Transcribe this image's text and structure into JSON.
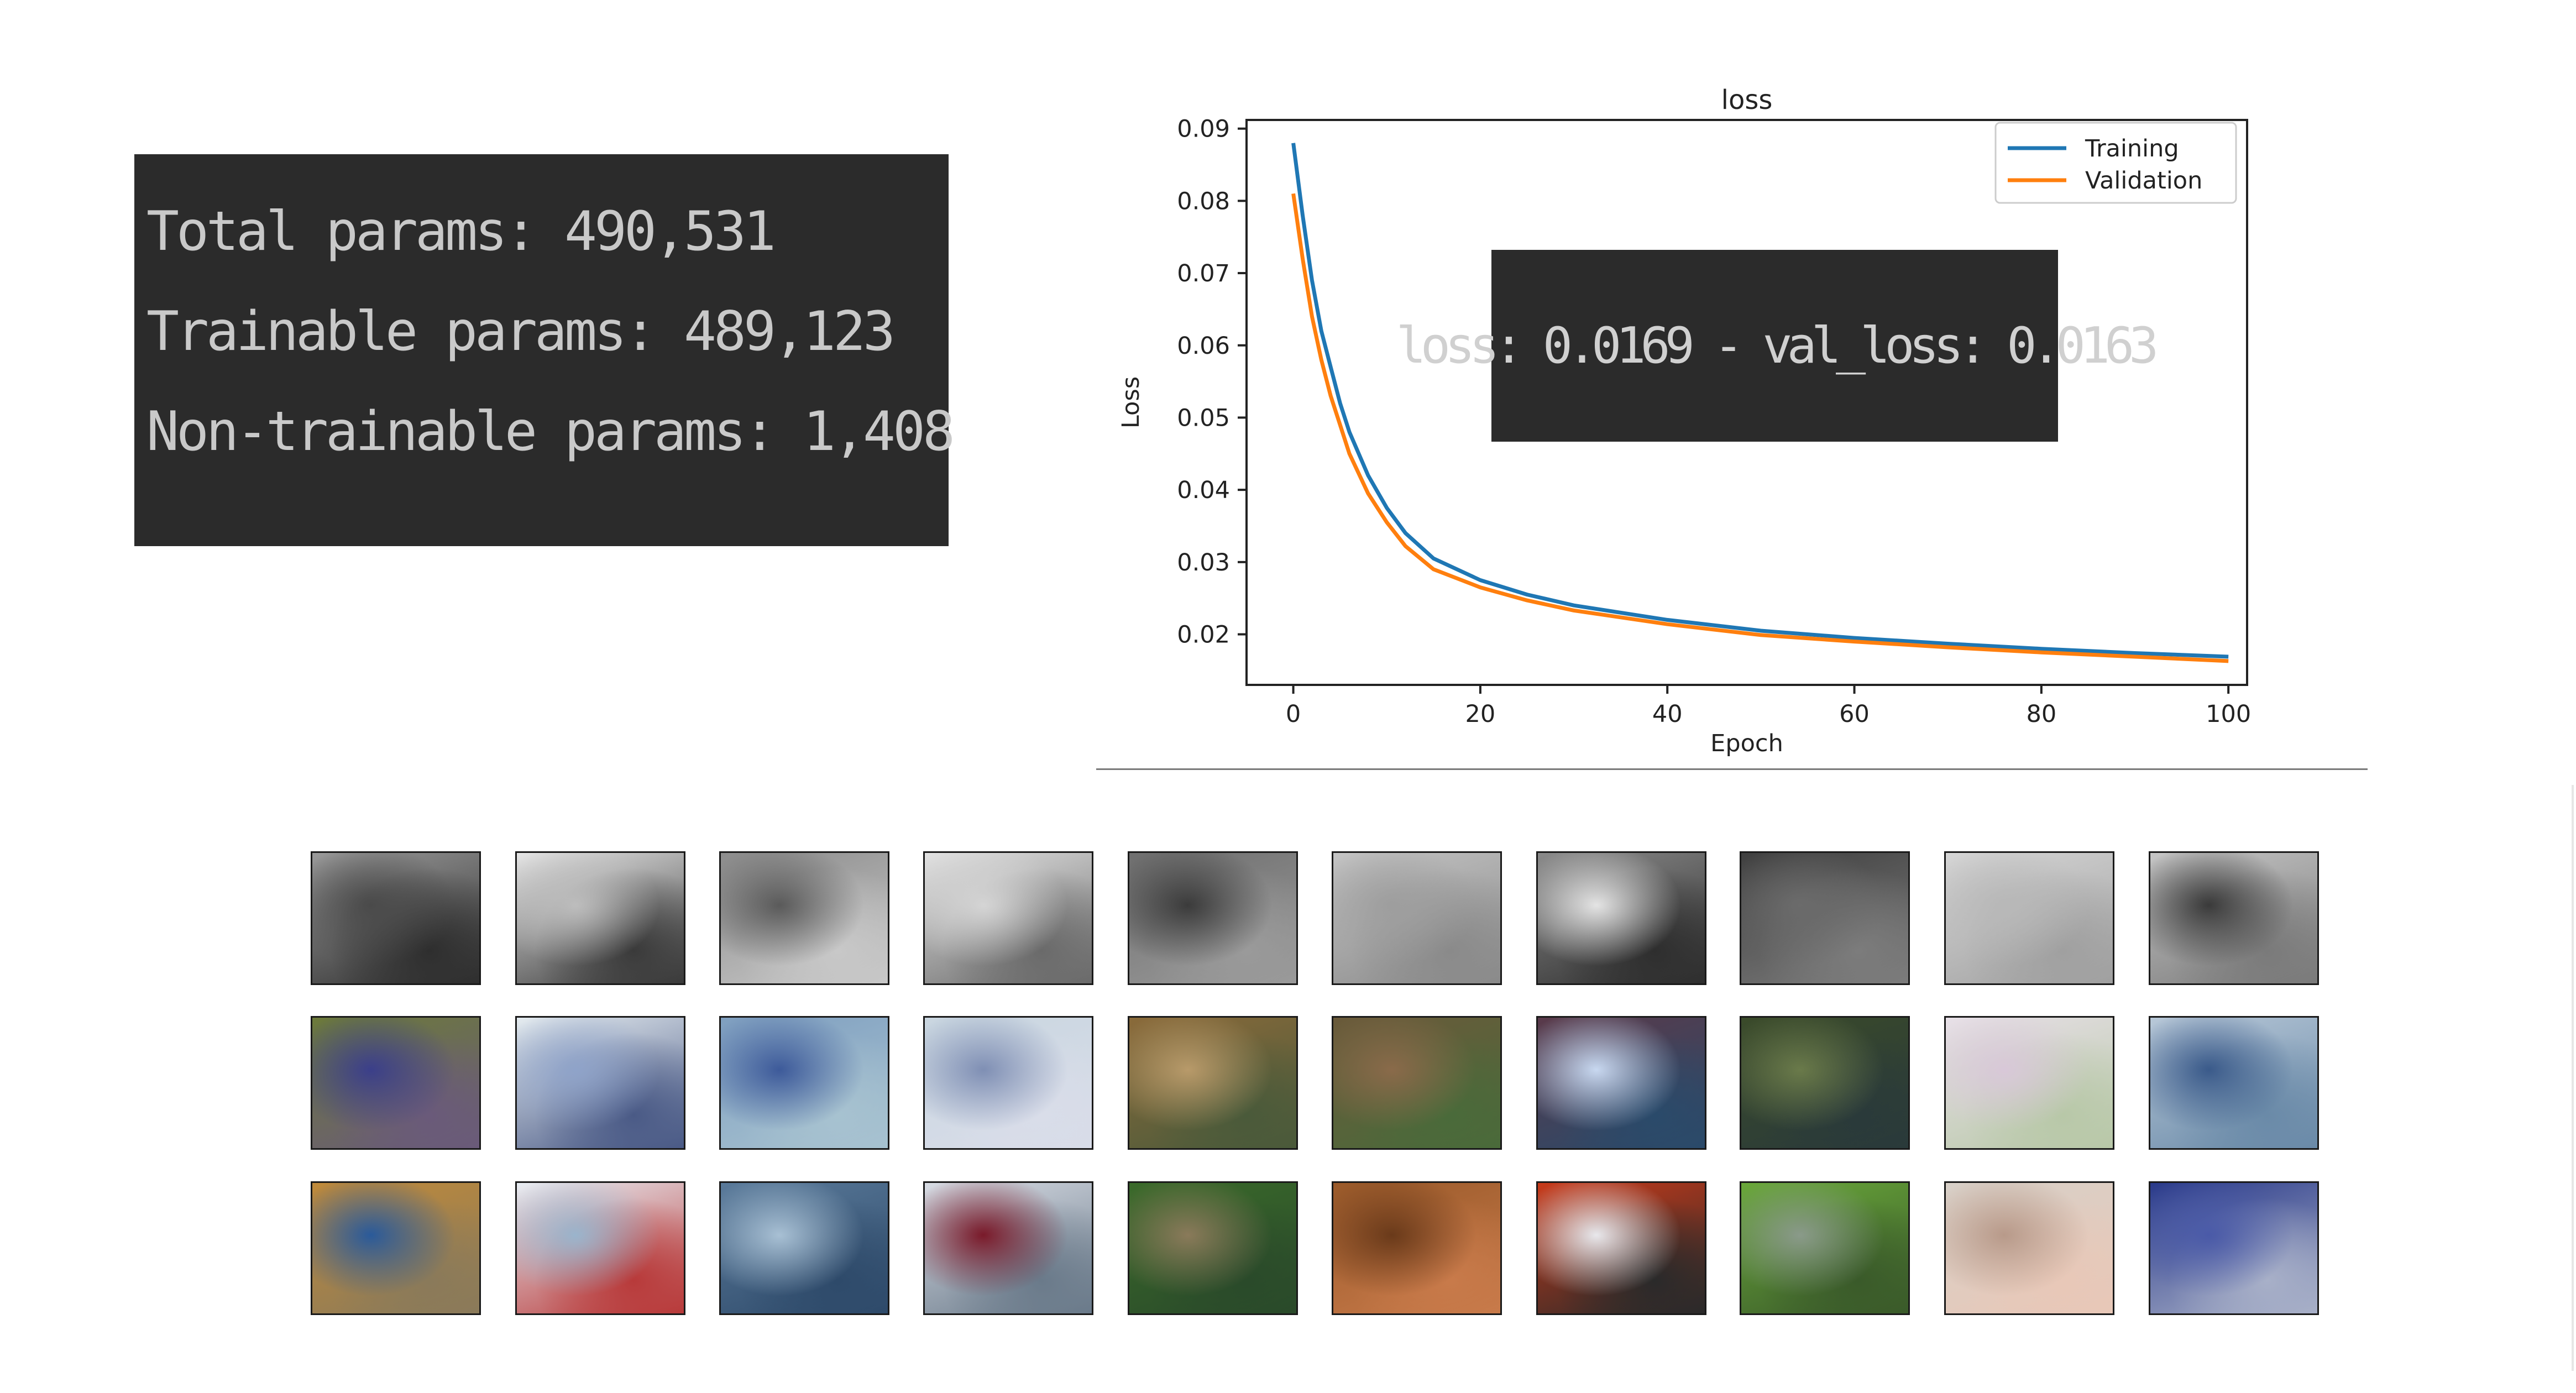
{
  "summary": {
    "lines": [
      "Total params: 490,531",
      "Trainable params: 489,123",
      "Non-trainable params: 1,408"
    ]
  },
  "overlay": {
    "text": "loss: 0.0169 - val_loss: 0.0163"
  },
  "colors": {
    "training": "#1f77b4",
    "validation": "#ff7f0e",
    "panel_bg": "#2b2b2b"
  },
  "chart_data": {
    "type": "line",
    "title": "loss",
    "xlabel": "Epoch",
    "ylabel": "Loss",
    "xlim": [
      -5,
      102
    ],
    "ylim": [
      0.013,
      0.0912
    ],
    "xticks": [
      0,
      20,
      40,
      60,
      80,
      100
    ],
    "yticks": [
      0.02,
      0.03,
      0.04,
      0.05,
      0.06,
      0.07,
      0.08,
      0.09
    ],
    "grid": false,
    "legend": "top-right",
    "series": [
      {
        "name": "Training",
        "x": [
          0,
          1,
          2,
          3,
          4,
          5,
          6,
          8,
          10,
          12,
          15,
          20,
          25,
          30,
          40,
          50,
          60,
          70,
          80,
          90,
          100
        ],
        "y": [
          0.088,
          0.078,
          0.069,
          0.062,
          0.057,
          0.052,
          0.048,
          0.042,
          0.0375,
          0.034,
          0.0305,
          0.0275,
          0.0255,
          0.024,
          0.022,
          0.0205,
          0.0195,
          0.0187,
          0.018,
          0.0174,
          0.0169
        ]
      },
      {
        "name": "Validation",
        "x": [
          0,
          1,
          2,
          3,
          4,
          5,
          6,
          8,
          10,
          12,
          15,
          20,
          25,
          30,
          40,
          50,
          60,
          70,
          80,
          90,
          100
        ],
        "y": [
          0.081,
          0.072,
          0.064,
          0.058,
          0.053,
          0.049,
          0.045,
          0.0395,
          0.0355,
          0.0322,
          0.029,
          0.0265,
          0.0247,
          0.0233,
          0.0214,
          0.0199,
          0.019,
          0.0182,
          0.0175,
          0.0169,
          0.0163
        ]
      }
    ]
  },
  "grid": {
    "rows": [
      {
        "name": "original-grayscale",
        "tiles": [
          [
            "#9a9a9a",
            "#4a4a4a",
            "#2e2e2e"
          ],
          [
            "#e6e6e6",
            "#bdbdbd",
            "#3a3a3a"
          ],
          [
            "#8c8c8c",
            "#5a5a5a",
            "#c8c8c8"
          ],
          [
            "#e2e2e2",
            "#d5d5d5",
            "#6a6a6a"
          ],
          [
            "#6f6f6f",
            "#3b3b3b",
            "#9a9a9a"
          ],
          [
            "#c4c4c4",
            "#9e9e9e",
            "#8a8a8a"
          ],
          [
            "#8a8a8a",
            "#e4e4e4",
            "#2e2e2e"
          ],
          [
            "#3f3f3f",
            "#6b6b6b",
            "#7c7c7c"
          ],
          [
            "#d6d6d6",
            "#b8b8b8",
            "#a0a0a0"
          ],
          [
            "#c6c6c6",
            "#3a3a3a",
            "#7a7a7a"
          ]
        ]
      },
      {
        "name": "reconstructed-color",
        "tiles": [
          [
            "#6c7a3a",
            "#3b3f8a",
            "#6a5a7a"
          ],
          [
            "#e5ecf0",
            "#8fa3c9",
            "#4a5a86"
          ],
          [
            "#7f9fc0",
            "#3d5a9a",
            "#a7c2d0"
          ],
          [
            "#c9d6e0",
            "#7f8fb4",
            "#d9dde9"
          ],
          [
            "#8a6a3a",
            "#b89a6a",
            "#4a5a3a"
          ],
          [
            "#6a5a3a",
            "#8a6a4a",
            "#4a6a3a"
          ],
          [
            "#5a3a4a",
            "#c8d8f0",
            "#2a4a6a"
          ],
          [
            "#3a4a2a",
            "#6a7a4a",
            "#2a3a3a"
          ],
          [
            "#e8e0e8",
            "#d8c8d8",
            "#b8c8a8"
          ],
          [
            "#b8c8d8",
            "#3a5a8a",
            "#6a8aa8"
          ]
        ]
      },
      {
        "name": "original-color",
        "tiles": [
          [
            "#c08a3a",
            "#2a5a9a",
            "#8a7a5a"
          ],
          [
            "#e8eef4",
            "#9ab4cc",
            "#b83a3a"
          ],
          [
            "#5a7a9a",
            "#a8c0d4",
            "#2e4a6a"
          ],
          [
            "#d8dce4",
            "#7a1a2a",
            "#6a7a8a"
          ],
          [
            "#3a6a2a",
            "#8a7a5a",
            "#2a4a2a"
          ],
          [
            "#9a5a2a",
            "#6a3a1a",
            "#c87a4a"
          ],
          [
            "#c83a1a",
            "#e8e8ec",
            "#2a2a2a"
          ],
          [
            "#6aa83a",
            "#8a9a8a",
            "#3a5a2a"
          ],
          [
            "#d8d0c8",
            "#b89a8a",
            "#e8c8b8"
          ],
          [
            "#2a3a8a",
            "#4a5aa8",
            "#a8b0c8"
          ]
        ]
      }
    ]
  }
}
